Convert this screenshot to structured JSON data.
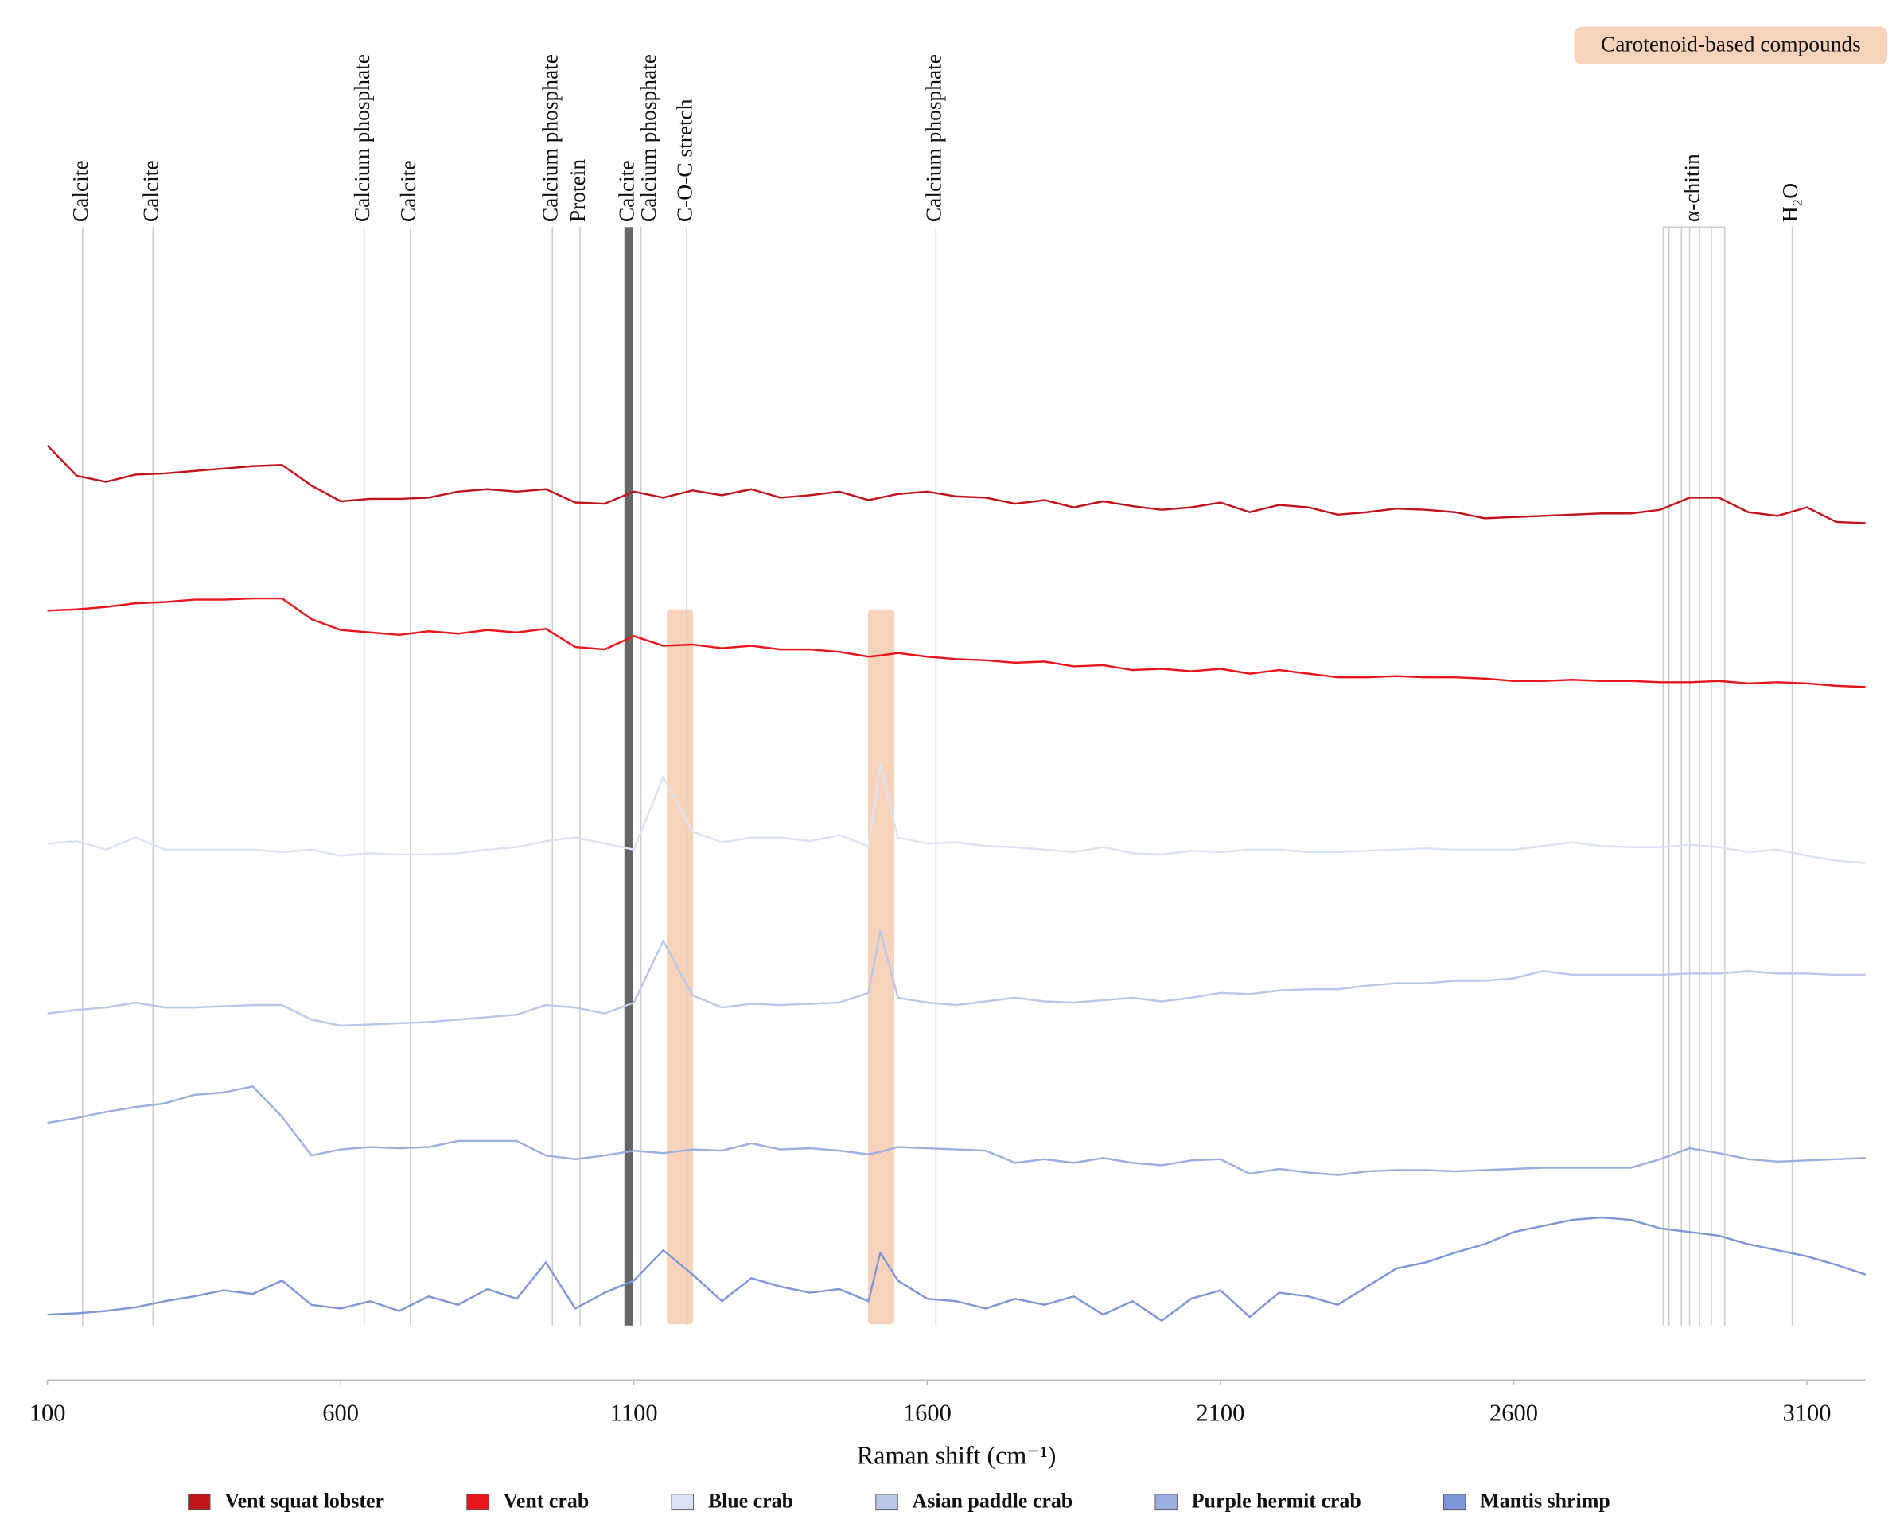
{
  "chart_data": {
    "type": "line",
    "xlabel": "Raman shift (cm⁻¹)",
    "xlim": [
      100,
      3200
    ],
    "xticks": [
      100,
      600,
      1100,
      1600,
      2100,
      2600,
      3100
    ],
    "ylim": [
      0,
      110
    ],
    "legend_position": "bottom",
    "x": [
      100,
      150,
      200,
      250,
      300,
      350,
      400,
      450,
      500,
      550,
      600,
      650,
      700,
      750,
      800,
      850,
      900,
      950,
      1000,
      1050,
      1100,
      1150,
      1200,
      1250,
      1300,
      1350,
      1400,
      1450,
      1500,
      1520,
      1550,
      1600,
      1650,
      1700,
      1750,
      1800,
      1850,
      1900,
      1950,
      2000,
      2050,
      2100,
      2150,
      2200,
      2250,
      2300,
      2350,
      2400,
      2450,
      2500,
      2550,
      2600,
      2650,
      2700,
      2750,
      2800,
      2850,
      2900,
      2950,
      3000,
      3050,
      3100,
      3150,
      3200
    ],
    "series": [
      {
        "name": "Vent squat lobster",
        "color": "#c0141c",
        "values": [
          77.3,
          74.8,
          74.3,
          74.9,
          75,
          75.2,
          75.4,
          75.6,
          75.7,
          74,
          72.7,
          72.9,
          72.9,
          73,
          73.5,
          73.7,
          73.5,
          73.7,
          72.6,
          72.5,
          73.5,
          73,
          73.6,
          73.2,
          73.7,
          73,
          73.2,
          73.5,
          72.8,
          73,
          73.3,
          73.5,
          73.1,
          73,
          72.5,
          72.8,
          72.2,
          72.7,
          72.3,
          72,
          72.2,
          72.6,
          71.8,
          72.4,
          72.2,
          71.6,
          71.8,
          72.1,
          72,
          71.8,
          71.3,
          71.4,
          71.5,
          71.6,
          71.7,
          71.7,
          72,
          73,
          73,
          71.8,
          71.5,
          72.2,
          71,
          70.9
        ]
      },
      {
        "name": "Vent crab",
        "color": "#e8161c",
        "values": [
          63.7,
          63.8,
          64,
          64.3,
          64.4,
          64.6,
          64.6,
          64.7,
          64.7,
          63,
          62.1,
          61.9,
          61.7,
          62,
          61.8,
          62.1,
          61.9,
          62.2,
          60.7,
          60.5,
          61.6,
          60.8,
          60.9,
          60.6,
          60.8,
          60.5,
          60.5,
          60.3,
          59.9,
          60,
          60.2,
          59.9,
          59.7,
          59.6,
          59.4,
          59.5,
          59.1,
          59.2,
          58.8,
          58.9,
          58.7,
          58.9,
          58.5,
          58.8,
          58.5,
          58.2,
          58.2,
          58.3,
          58.2,
          58.2,
          58.1,
          57.9,
          57.9,
          58,
          57.9,
          57.9,
          57.8,
          57.8,
          57.9,
          57.7,
          57.8,
          57.7,
          57.5,
          57.4
        ]
      },
      {
        "name": "Blue crab",
        "color": "#dbe2f4",
        "values": [
          44.5,
          44.7,
          44,
          45,
          44,
          44,
          44,
          44,
          43.8,
          44,
          43.5,
          43.7,
          43.6,
          43.6,
          43.7,
          44,
          44.2,
          44.7,
          45,
          44.5,
          44,
          50,
          45.5,
          44.6,
          45,
          45,
          44.7,
          45.2,
          44.3,
          51,
          45,
          44.5,
          44.6,
          44.3,
          44.2,
          44,
          43.8,
          44.2,
          43.7,
          43.6,
          43.9,
          43.8,
          44,
          44,
          43.8,
          43.8,
          43.9,
          44,
          44.1,
          44,
          44,
          44,
          44.3,
          44.6,
          44.3,
          44.2,
          44.2,
          44.4,
          44.2,
          43.8,
          44,
          43.5,
          43.1,
          42.9
        ]
      },
      {
        "name": "Asian paddle crab",
        "color": "#b9c7ea",
        "values": [
          30.5,
          30.8,
          31,
          31.4,
          31,
          31,
          31.1,
          31.2,
          31.2,
          30,
          29.5,
          29.6,
          29.7,
          29.8,
          30,
          30.2,
          30.4,
          31.2,
          31,
          30.5,
          31.4,
          36.5,
          32,
          31,
          31.3,
          31.2,
          31.3,
          31.4,
          32.2,
          37.3,
          31.8,
          31.4,
          31.2,
          31.5,
          31.8,
          31.5,
          31.4,
          31.6,
          31.8,
          31.5,
          31.8,
          32.2,
          32.1,
          32.4,
          32.5,
          32.5,
          32.8,
          33,
          33,
          33.2,
          33.2,
          33.4,
          34,
          33.7,
          33.7,
          33.7,
          33.7,
          33.8,
          33.8,
          34,
          33.8,
          33.8,
          33.7,
          33.7
        ]
      },
      {
        "name": "Purple hermit crab",
        "color": "#9aafe0",
        "values": [
          21.5,
          21.9,
          22.4,
          22.8,
          23.1,
          23.8,
          24,
          24.5,
          22,
          18.8,
          19.3,
          19.5,
          19.4,
          19.5,
          20,
          20,
          20,
          18.8,
          18.5,
          18.8,
          19.2,
          19,
          19.3,
          19.2,
          19.8,
          19.3,
          19.4,
          19.2,
          18.9,
          19.1,
          19.5,
          19.4,
          19.3,
          19.2,
          18.2,
          18.5,
          18.2,
          18.6,
          18.2,
          18,
          18.4,
          18.5,
          17.3,
          17.7,
          17.4,
          17.2,
          17.5,
          17.6,
          17.6,
          17.5,
          17.6,
          17.7,
          17.8,
          17.8,
          17.8,
          17.8,
          18.5,
          19.4,
          19,
          18.5,
          18.3,
          18.4,
          18.5,
          18.6
        ]
      },
      {
        "name": "Mantis shrimp",
        "color": "#7d97d6",
        "values": [
          5.7,
          5.8,
          6,
          6.3,
          6.8,
          7.2,
          7.7,
          7.4,
          8.5,
          6.5,
          6.2,
          6.8,
          6,
          7.2,
          6.5,
          7.8,
          7,
          10,
          6.2,
          7.5,
          8.5,
          11,
          9,
          6.8,
          8.7,
          8,
          7.5,
          7.8,
          6.8,
          10.8,
          8.5,
          7,
          6.8,
          6.2,
          7,
          6.5,
          7.2,
          5.7,
          6.8,
          5.2,
          7,
          7.7,
          5.5,
          7.5,
          7.2,
          6.5,
          8,
          9.5,
          10,
          10.8,
          11.5,
          12.5,
          13,
          13.5,
          13.7,
          13.5,
          12.8,
          12.5,
          12.2,
          11.5,
          11,
          10.5,
          9.8,
          9
        ]
      }
    ],
    "highlight": {
      "label": "Carotenoid-based compounds",
      "color": "#f8d3bb",
      "ranges": [
        [
          1156,
          1201
        ],
        [
          1499,
          1544
        ]
      ]
    },
    "annotations": [
      {
        "label": "Calcite",
        "x": 160,
        "color": "#cccccc"
      },
      {
        "label": "Calcite",
        "x": 280,
        "color": "#cccccc"
      },
      {
        "label": "Calcium phosphate",
        "x": 640,
        "color": "#cccccc"
      },
      {
        "label": "Calcite",
        "x": 719,
        "color": "#cccccc"
      },
      {
        "label": "Calcium phosphate",
        "x": 961,
        "color": "#cccccc"
      },
      {
        "label": "Protein",
        "x": 1008,
        "color": "#cccccc"
      },
      {
        "label": "Calcite",
        "x": 1091,
        "color": "#666666"
      },
      {
        "label": "Calcium phosphate",
        "x": 1112,
        "color": "#cccccc"
      },
      {
        "label": "C-O-C stretch",
        "x": 1190,
        "color": "#cccccc"
      },
      {
        "label": "Calcium phosphate",
        "x": 1615,
        "color": "#cccccc"
      },
      {
        "label": "α-chitin",
        "x": [
          2855,
          2865,
          2886,
          2900,
          2917,
          2937,
          2960
        ],
        "color": "#cccccc"
      },
      {
        "label": "H₂O",
        "x": 3075,
        "color": "#cccccc"
      }
    ]
  }
}
